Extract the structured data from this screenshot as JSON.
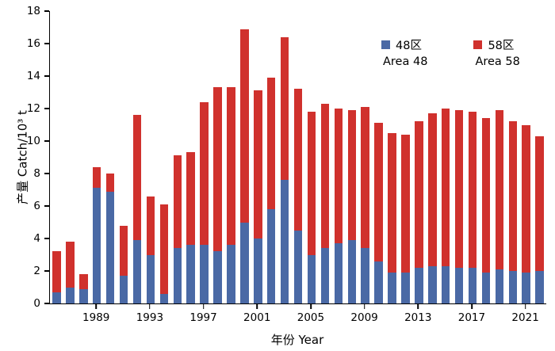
{
  "chart_data": {
    "type": "bar",
    "stacked": true,
    "title": "",
    "xlabel": "年份 Year",
    "ylabel": "产量 Catch/10³ t",
    "ylim": [
      0,
      18
    ],
    "ytick_step": 2,
    "grid": false,
    "legend_position": "top-right-inside",
    "x": [
      1986,
      1987,
      1988,
      1989,
      1990,
      1991,
      1992,
      1993,
      1994,
      1995,
      1996,
      1997,
      1998,
      1999,
      2000,
      2001,
      2002,
      2003,
      2004,
      2005,
      2006,
      2007,
      2008,
      2009,
      2010,
      2011,
      2012,
      2013,
      2014,
      2015,
      2016,
      2017,
      2018,
      2019,
      2020,
      2021,
      2022
    ],
    "xtick_labels": [
      "1989",
      "1993",
      "1997",
      "2001",
      "2005",
      "2009",
      "2013",
      "2017",
      "2021"
    ],
    "xtick_years": [
      1989,
      1993,
      1997,
      2001,
      2005,
      2009,
      2013,
      2017,
      2021
    ],
    "series": [
      {
        "name": "48区 Area 48",
        "label_cn": "48区",
        "label_en": "Area 48",
        "color": "#4a69a5",
        "values": [
          0.7,
          1.0,
          0.9,
          7.1,
          6.9,
          1.7,
          3.9,
          3.0,
          0.6,
          3.4,
          3.6,
          3.6,
          3.2,
          3.6,
          5.0,
          4.0,
          5.8,
          7.6,
          4.5,
          3.0,
          3.4,
          3.7,
          3.9,
          3.4,
          2.6,
          1.9,
          1.9,
          2.2,
          2.3,
          2.3,
          2.2,
          2.2,
          1.9,
          2.1,
          2.0,
          1.9,
          2.0
        ]
      },
      {
        "name": "58区 Area 58",
        "label_cn": "58区",
        "label_en": "Area 58",
        "color": "#d0312d",
        "values": [
          2.5,
          2.8,
          0.9,
          1.3,
          1.1,
          3.1,
          7.7,
          3.6,
          5.5,
          5.7,
          5.7,
          8.8,
          10.1,
          9.7,
          11.9,
          9.1,
          8.1,
          8.8,
          8.7,
          8.8,
          8.9,
          8.3,
          8.0,
          8.7,
          8.5,
          8.6,
          8.5,
          9.0,
          9.4,
          9.7,
          9.7,
          9.6,
          9.5,
          9.8,
          9.2,
          9.1,
          8.3
        ]
      }
    ],
    "totals": [
      3.2,
      3.8,
      1.8,
      8.4,
      8.0,
      4.8,
      11.6,
      6.6,
      6.1,
      9.1,
      9.3,
      12.4,
      13.3,
      13.3,
      16.9,
      13.1,
      13.9,
      16.4,
      13.2,
      11.8,
      12.3,
      12.0,
      11.9,
      12.1,
      11.1,
      10.5,
      10.4,
      11.2,
      11.7,
      12.0,
      11.9,
      11.8,
      11.4,
      11.9,
      11.2,
      11.0,
      10.3
    ]
  }
}
